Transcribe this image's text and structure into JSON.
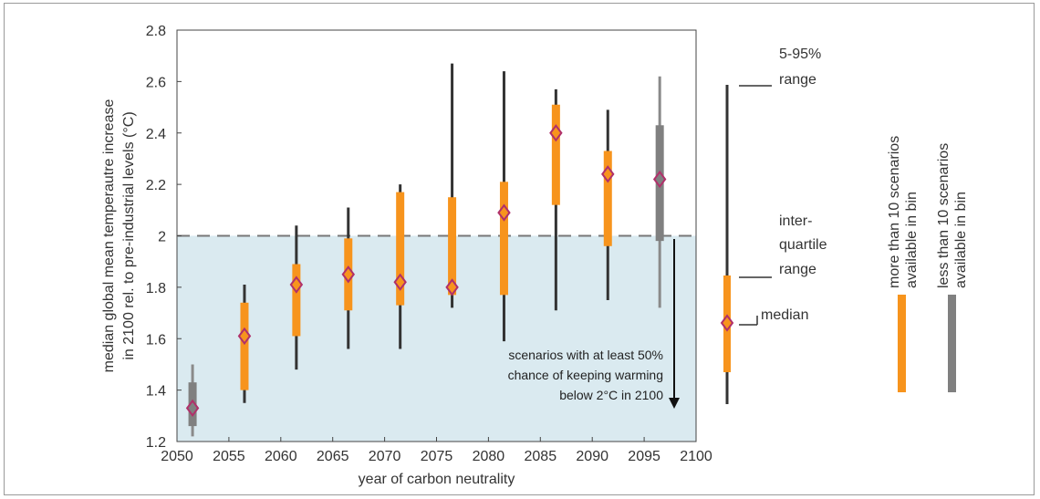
{
  "chart_data": {
    "type": "boxplot",
    "xlabel": "year of carbon neutrality",
    "ylabel_line1": "median global mean temperautre increase",
    "ylabel_line2": "in 2100 rel. to pre-industrial levels (°C)",
    "xlim": [
      2050,
      2100
    ],
    "ylim": [
      1.2,
      2.8
    ],
    "x_ticks": [
      "2050",
      "2055",
      "2060",
      "2065",
      "2070",
      "2075",
      "2080",
      "2085",
      "2090",
      "2095",
      "2100"
    ],
    "y_ticks": [
      "1.2",
      "1.4",
      "1.6",
      "1.8",
      "2",
      "2.2",
      "2.4",
      "2.6",
      "2.8"
    ],
    "threshold": 2.0,
    "annotation": [
      "scenarios with at least 50%",
      "chance of keeping warming",
      "below 2°C in 2100"
    ],
    "colors": {
      "more_than_10": "#f7941d",
      "less_than_10": "#808080",
      "whisker": "#333333",
      "median_marker": "#b0306a",
      "shaded_region": "#daeaf0"
    },
    "bins": [
      {
        "x": 2051.5,
        "p5": 1.22,
        "q1": 1.26,
        "median": 1.33,
        "q3": 1.43,
        "p95": 1.5,
        "group": "less_than_10"
      },
      {
        "x": 2056.5,
        "p5": 1.35,
        "q1": 1.4,
        "median": 1.61,
        "q3": 1.74,
        "p95": 1.81,
        "group": "more_than_10"
      },
      {
        "x": 2061.5,
        "p5": 1.48,
        "q1": 1.61,
        "median": 1.81,
        "q3": 1.89,
        "p95": 2.04,
        "group": "more_than_10"
      },
      {
        "x": 2066.5,
        "p5": 1.56,
        "q1": 1.71,
        "median": 1.85,
        "q3": 1.99,
        "p95": 2.11,
        "group": "more_than_10"
      },
      {
        "x": 2071.5,
        "p5": 1.56,
        "q1": 1.73,
        "median": 1.82,
        "q3": 2.17,
        "p95": 2.2,
        "group": "more_than_10"
      },
      {
        "x": 2076.5,
        "p5": 1.72,
        "q1": 1.77,
        "median": 1.8,
        "q3": 2.15,
        "p95": 2.67,
        "group": "more_than_10"
      },
      {
        "x": 2081.5,
        "p5": 1.59,
        "q1": 1.77,
        "median": 2.09,
        "q3": 2.21,
        "p95": 2.64,
        "group": "more_than_10"
      },
      {
        "x": 2086.5,
        "p5": 1.71,
        "q1": 2.12,
        "median": 2.4,
        "q3": 2.51,
        "p95": 2.57,
        "group": "more_than_10"
      },
      {
        "x": 2091.5,
        "p5": 1.75,
        "q1": 1.96,
        "median": 2.24,
        "q3": 2.33,
        "p95": 2.49,
        "group": "more_than_10"
      },
      {
        "x": 2096.5,
        "p5": 1.72,
        "q1": 1.98,
        "median": 2.22,
        "q3": 2.43,
        "p95": 2.62,
        "group": "less_than_10"
      }
    ]
  },
  "key": {
    "range_5_95": [
      "5-95%",
      "range"
    ],
    "interquartile": [
      "inter-",
      "quartile",
      "range"
    ],
    "median": "median"
  },
  "legend": {
    "more_than_10": [
      "more than 10 scenarios",
      "available in bin"
    ],
    "less_than_10": [
      "less than 10 scenarios",
      "available in bin"
    ]
  }
}
